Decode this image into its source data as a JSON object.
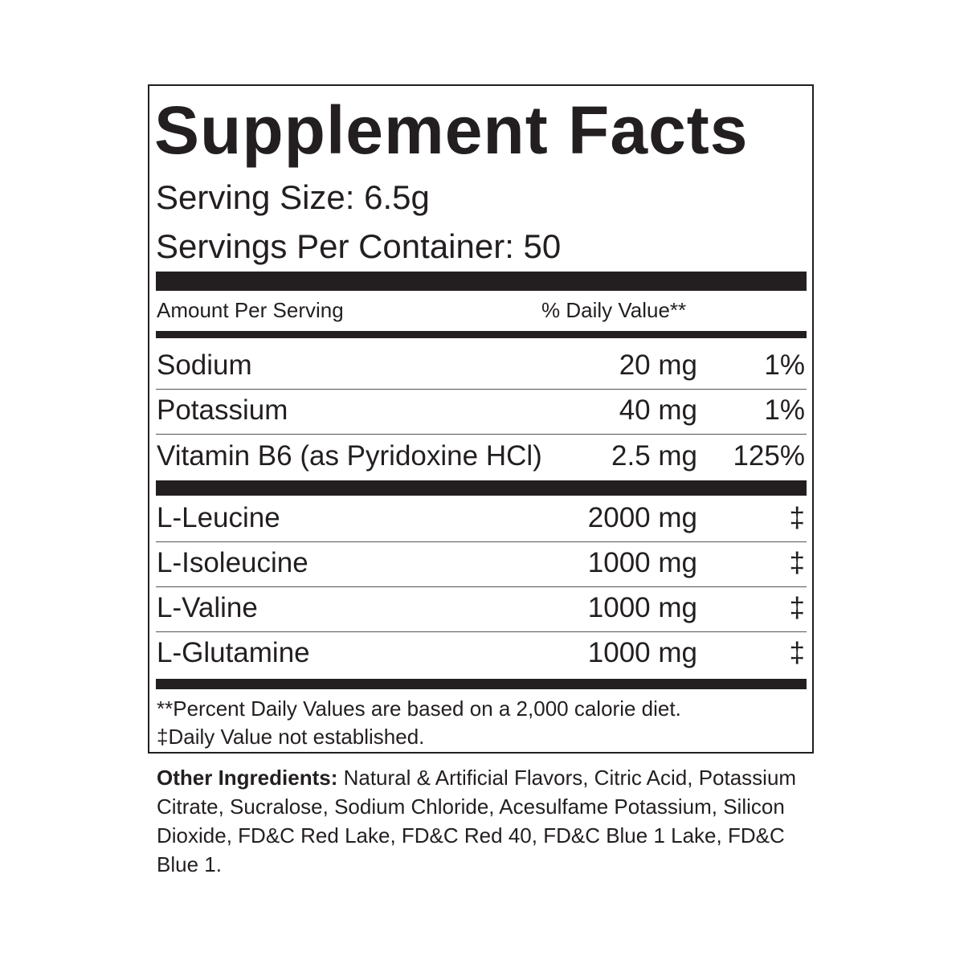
{
  "title": "Supplement Facts",
  "serving_size": "Serving Size: 6.5g",
  "servings_per_container": "Servings Per Container: 50",
  "header": {
    "amount": "Amount Per Serving",
    "daily_value": "% Daily Value**"
  },
  "rows": [
    [
      "Sodium",
      "20 mg",
      "1%"
    ],
    [
      "Potassium",
      "40 mg",
      "1%"
    ],
    [
      "Vitamin B6 (as Pyridoxine HCl)",
      "2.5 mg",
      "125%"
    ]
  ],
  "amino_rows": [
    [
      "L-Leucine",
      "2000 mg",
      "‡"
    ],
    [
      "L-Isoleucine",
      "1000 mg",
      "‡"
    ],
    [
      "L-Valine",
      "1000 mg",
      "‡"
    ],
    [
      "L-Glutamine",
      "1000 mg",
      "‡"
    ]
  ],
  "footnotes": [
    "**Percent Daily Values are based on a 2,000 calorie diet.",
    "‡Daily Value not established."
  ],
  "other_ingredients": {
    "label": "Other Ingredients:",
    "text": " Natural & Artificial Flavors, Citric Acid, Potassium Citrate, Sucralose, Sodium Chloride, Acesulfame Potassium, Silicon Dioxide, FD&C Red Lake, FD&C Red 40, FD&C Blue 1 Lake, FD&C Blue 1."
  }
}
